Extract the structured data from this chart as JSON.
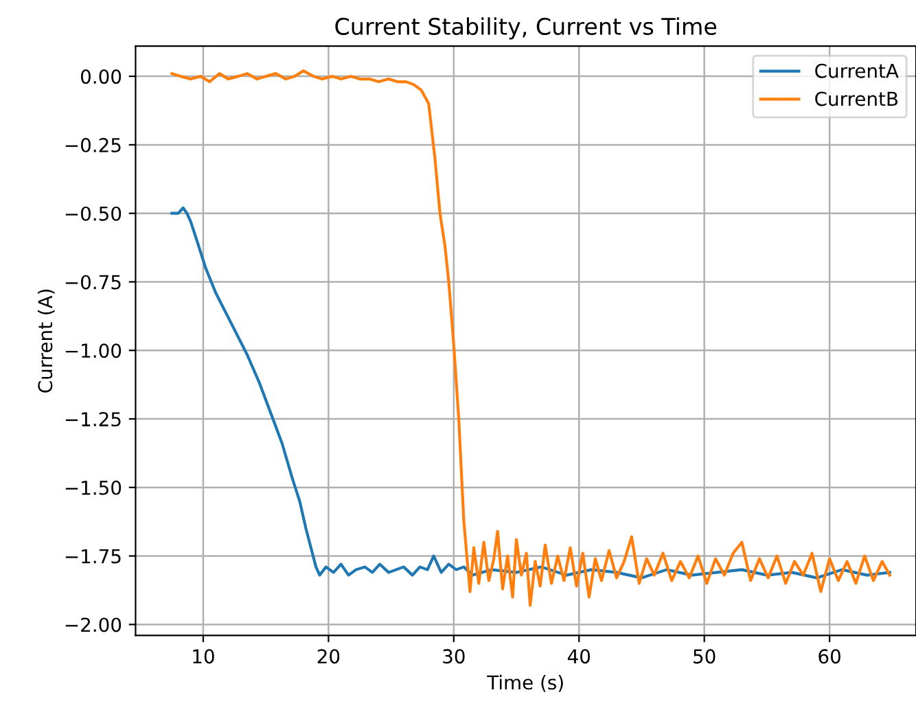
{
  "chart_data": {
    "type": "line",
    "title": "Current Stability, Current vs Time",
    "xlabel": "Time (s)",
    "ylabel": "Current (A)",
    "xlim": [
      4.6,
      66.9
    ],
    "ylim": [
      -2.04,
      0.11
    ],
    "xticks": [
      10,
      20,
      30,
      40,
      50,
      60
    ],
    "yticks": [
      {
        "value": 0,
        "label": "0.00"
      },
      {
        "value": -0.25,
        "label": "−0.25"
      },
      {
        "value": -0.5,
        "label": "−0.50"
      },
      {
        "value": -0.75,
        "label": "−0.75"
      },
      {
        "value": -1,
        "label": "−1.00"
      },
      {
        "value": -1.25,
        "label": "−1.25"
      },
      {
        "value": -1.5,
        "label": "−1.50"
      },
      {
        "value": -1.75,
        "label": "−1.75"
      },
      {
        "value": -2,
        "label": "−2.00"
      }
    ],
    "grid": true,
    "legend": "top right",
    "line_style": "solid",
    "marker": "none",
    "series": [
      {
        "name": "CurrentA",
        "color": "#1f77b4",
        "x": [
          7.5,
          8.0,
          8.4,
          8.7,
          9.0,
          9.5,
          10.2,
          11,
          12,
          13.5,
          14.5,
          15.4,
          16.3,
          17.1,
          17.7,
          18.2,
          18.6,
          19.0,
          19.3,
          19.8,
          20.4,
          21,
          21.6,
          22.2,
          22.9,
          23.5,
          24.1,
          24.8,
          25.4,
          26,
          26.7,
          27.3,
          27.9,
          28.4,
          29,
          29.6,
          30.2,
          30.8,
          31.5,
          33,
          35,
          37,
          39,
          41,
          43,
          45,
          47,
          49,
          51,
          53,
          55,
          57,
          59,
          61,
          63,
          64.8
        ],
        "values": [
          -0.5,
          -0.5,
          -0.48,
          -0.5,
          -0.53,
          -0.6,
          -0.7,
          -0.79,
          -0.88,
          -1.015,
          -1.12,
          -1.23,
          -1.34,
          -1.465,
          -1.55,
          -1.65,
          -1.72,
          -1.79,
          -1.82,
          -1.79,
          -1.81,
          -1.78,
          -1.82,
          -1.8,
          -1.79,
          -1.81,
          -1.78,
          -1.81,
          -1.8,
          -1.79,
          -1.82,
          -1.79,
          -1.8,
          -1.75,
          -1.81,
          -1.78,
          -1.8,
          -1.79,
          -1.82,
          -1.8,
          -1.81,
          -1.79,
          -1.82,
          -1.8,
          -1.81,
          -1.83,
          -1.8,
          -1.82,
          -1.81,
          -1.8,
          -1.82,
          -1.81,
          -1.83,
          -1.8,
          -1.82,
          -1.81
        ]
      },
      {
        "name": "CurrentB",
        "color": "#ff7f0e",
        "x": [
          7.5,
          8.2,
          9,
          9.8,
          10.5,
          11.3,
          12,
          12.8,
          13.5,
          14.3,
          15,
          15.8,
          16.6,
          17.3,
          18,
          18.8,
          19.5,
          20.3,
          21,
          21.8,
          22.5,
          23.3,
          24,
          24.8,
          25.5,
          26.2,
          26.8,
          27.4,
          28,
          28.5,
          28.9,
          29.3,
          29.6,
          30,
          30.4,
          30.8,
          31.1,
          31.3,
          31.6,
          32,
          32.4,
          32.8,
          33.2,
          33.5,
          33.9,
          34.3,
          34.7,
          35,
          35.4,
          35.8,
          36.1,
          36.5,
          36.9,
          37.3,
          37.8,
          38.3,
          38.8,
          39.3,
          39.8,
          40.3,
          40.8,
          41.3,
          41.8,
          42.4,
          43,
          43.6,
          44.2,
          44.8,
          45.4,
          46,
          46.7,
          47.4,
          48.1,
          48.8,
          49.5,
          50.2,
          50.9,
          51.6,
          52.3,
          53,
          53.7,
          54.4,
          55.1,
          55.8,
          56.5,
          57.2,
          57.9,
          58.6,
          59.3,
          60,
          60.7,
          61.4,
          62.1,
          62.8,
          63.5,
          64.2,
          64.8
        ],
        "values": [
          0.01,
          0,
          -0.01,
          0,
          -0.02,
          0.01,
          -0.01,
          0,
          0.01,
          -0.01,
          0,
          0.01,
          -0.01,
          0,
          0.02,
          0,
          -0.01,
          0,
          -0.01,
          0,
          -0.01,
          -0.01,
          -0.02,
          -0.01,
          -0.02,
          -0.02,
          -0.03,
          -0.05,
          -0.1,
          -0.3,
          -0.5,
          -0.62,
          -0.75,
          -0.98,
          -1.25,
          -1.62,
          -1.78,
          -1.88,
          -1.72,
          -1.85,
          -1.7,
          -1.84,
          -1.76,
          -1.66,
          -1.87,
          -1.75,
          -1.9,
          -1.69,
          -1.82,
          -1.74,
          -1.93,
          -1.77,
          -1.86,
          -1.71,
          -1.85,
          -1.75,
          -1.84,
          -1.72,
          -1.86,
          -1.74,
          -1.9,
          -1.76,
          -1.84,
          -1.73,
          -1.83,
          -1.77,
          -1.68,
          -1.85,
          -1.76,
          -1.82,
          -1.74,
          -1.84,
          -1.77,
          -1.83,
          -1.75,
          -1.85,
          -1.76,
          -1.82,
          -1.74,
          -1.7,
          -1.84,
          -1.76,
          -1.83,
          -1.75,
          -1.85,
          -1.77,
          -1.82,
          -1.74,
          -1.88,
          -1.76,
          -1.84,
          -1.77,
          -1.85,
          -1.75,
          -1.84,
          -1.77,
          -1.82
        ]
      }
    ]
  }
}
